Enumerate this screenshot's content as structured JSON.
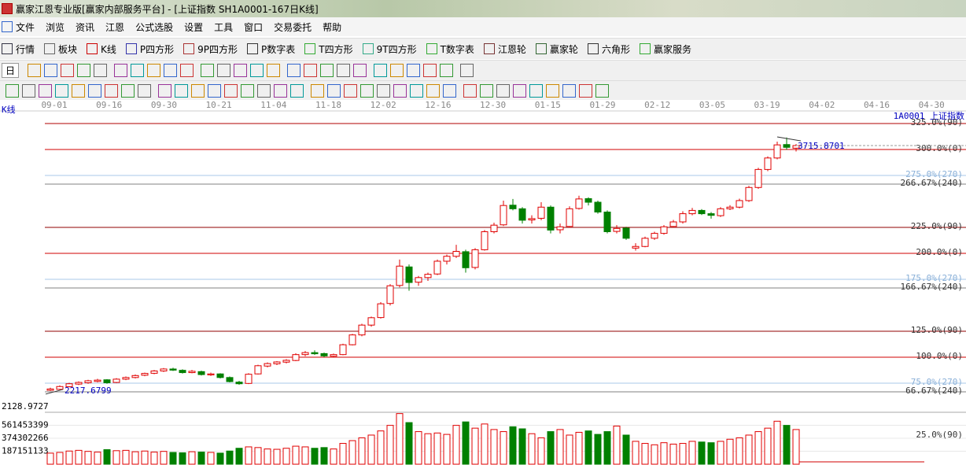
{
  "window": {
    "title": "赢家江恩专业版[赢家内部服务平台] - [上证指数  SH1A0001-167日K线]"
  },
  "menu": [
    "文件",
    "浏览",
    "资讯",
    "江恩",
    "公式选股",
    "设置",
    "工具",
    "窗口",
    "交易委托",
    "帮助"
  ],
  "toolbar": [
    "行情",
    "板块",
    "K线",
    "P四方形",
    "9P四方形",
    "P数字表",
    "T四方形",
    "9T四方形",
    "T数字表",
    "江恩轮",
    "赢家轮",
    "六角形",
    "赢家服务"
  ],
  "period_select": "日",
  "chart_data": {
    "type": "candlestick",
    "label": "K线",
    "symbol": "1A0001  上证指数",
    "dates": [
      "09-01",
      "09-16",
      "09-30",
      "10-21",
      "11-04",
      "11-18",
      "12-02",
      "12-16",
      "12-30",
      "01-15",
      "01-29",
      "02-12",
      "03-05",
      "03-19",
      "04-02",
      "04-16",
      "04-30"
    ],
    "open": [
      2222,
      2228,
      2244,
      2260,
      2268,
      2276,
      2286,
      2270,
      2290,
      2300,
      2314,
      2326,
      2340,
      2352,
      2344,
      2330,
      2336,
      2316,
      2322,
      2300,
      2272,
      2264,
      2322,
      2370,
      2384,
      2394,
      2404,
      2440,
      2452,
      2446,
      2430,
      2440,
      2500,
      2560,
      2620,
      2666,
      2752,
      2862,
      2975,
      2882,
      2910,
      2932,
      3010,
      3040,
      3068,
      2972,
      3080,
      3190,
      3232,
      3352,
      3330,
      3262,
      3272,
      3340,
      3202,
      3222,
      3332,
      3392,
      3370,
      3310,
      3192,
      3212,
      3090,
      3100,
      3150,
      3180,
      3222,
      3250,
      3300,
      3320,
      3300,
      3288,
      3330,
      3340,
      3380,
      3460,
      3570,
      3640,
      3722,
      3700
    ],
    "high": [
      2238,
      2252,
      2268,
      2276,
      2286,
      2292,
      2290,
      2296,
      2306,
      2318,
      2330,
      2346,
      2358,
      2360,
      2350,
      2346,
      2342,
      2330,
      2326,
      2306,
      2280,
      2326,
      2378,
      2392,
      2400,
      2412,
      2448,
      2462,
      2466,
      2452,
      2446,
      2506,
      2566,
      2628,
      2672,
      2760,
      2870,
      3020,
      2990,
      2920,
      2940,
      3020,
      3050,
      3110,
      3080,
      3090,
      3200,
      3245,
      3380,
      3390,
      3340,
      3290,
      3370,
      3350,
      3240,
      3345,
      3410,
      3400,
      3380,
      3320,
      3230,
      3220,
      3120,
      3160,
      3190,
      3230,
      3262,
      3315,
      3335,
      3328,
      3310,
      3340,
      3352,
      3392,
      3470,
      3580,
      3650,
      3740,
      3765,
      3725
    ],
    "low": [
      2217.6799,
      2224,
      2240,
      2254,
      2262,
      2270,
      2262,
      2266,
      2284,
      2294,
      2308,
      2320,
      2334,
      2340,
      2324,
      2326,
      2312,
      2310,
      2294,
      2270,
      2256,
      2260,
      2318,
      2362,
      2376,
      2386,
      2400,
      2430,
      2438,
      2424,
      2424,
      2436,
      2496,
      2552,
      2610,
      2660,
      2740,
      2850,
      2830,
      2860,
      2890,
      2925,
      2990,
      3030,
      2940,
      2960,
      3075,
      3180,
      3225,
      3320,
      3240,
      3240,
      3260,
      3180,
      3180,
      3215,
      3325,
      3350,
      3300,
      3180,
      3180,
      3140,
      3075,
      3095,
      3140,
      3172,
      3215,
      3240,
      3290,
      3292,
      3270,
      3280,
      3322,
      3332,
      3372,
      3452,
      3560,
      3632,
      3690,
      3680
    ],
    "close": [
      2230,
      2245,
      2262,
      2270,
      2280,
      2284,
      2268,
      2290,
      2300,
      2312,
      2325,
      2340,
      2352,
      2345,
      2330,
      2338,
      2318,
      2322,
      2300,
      2275,
      2262,
      2320,
      2372,
      2385,
      2395,
      2405,
      2440,
      2452,
      2445,
      2432,
      2440,
      2500,
      2560,
      2620,
      2665,
      2750,
      2860,
      2980,
      2880,
      2910,
      2930,
      3010,
      3040,
      3070,
      2970,
      3080,
      3190,
      3230,
      3350,
      3330,
      3260,
      3270,
      3340,
      3200,
      3220,
      3330,
      3390,
      3370,
      3310,
      3190,
      3210,
      3150,
      3100,
      3150,
      3180,
      3220,
      3250,
      3300,
      3320,
      3300,
      3290,
      3330,
      3340,
      3380,
      3460,
      3570,
      3640,
      3720,
      3705,
      3715.8701
    ],
    "ylim": [
      2155,
      3884
    ],
    "up_color": "#e00000",
    "down_color": "#008000",
    "y2lim": [
      57.58,
      330.3
    ],
    "levels": [
      {
        "value": 325,
        "label": "325.0%(90)",
        "color": "#b00000"
      },
      {
        "value": 300,
        "label": "300.0%(0)",
        "color": "#d00000"
      },
      {
        "value": 275,
        "label": "275.0%(270)",
        "color": "#a8c8e8"
      },
      {
        "value": 266.67,
        "label": "266.67%(240)",
        "color": "#808080"
      },
      {
        "value": 225,
        "label": "225.0%(90)",
        "color": "#900000"
      },
      {
        "value": 200,
        "label": "200.0%(0)",
        "color": "#d00000"
      },
      {
        "value": 175,
        "label": "175.0%(270)",
        "color": "#a8c8e8"
      },
      {
        "value": 166.67,
        "label": "166.67%(240)",
        "color": "#808080"
      },
      {
        "value": 125,
        "label": "125.0%(90)",
        "color": "#900000"
      },
      {
        "value": 100,
        "label": "100.0%(0)",
        "color": "#d00000"
      },
      {
        "value": 75,
        "label": "75.0%(270)",
        "color": "#a8c8e8"
      },
      {
        "value": 66.67,
        "label": "66.67%(240)",
        "color": "#808080"
      }
    ],
    "volume": [
      160000000,
      170000000,
      190000000,
      200000000,
      185000000,
      175000000,
      210000000,
      195000000,
      200000000,
      180000000,
      190000000,
      175000000,
      185000000,
      170000000,
      165000000,
      180000000,
      175000000,
      170000000,
      160000000,
      190000000,
      230000000,
      250000000,
      240000000,
      220000000,
      215000000,
      230000000,
      260000000,
      250000000,
      230000000,
      240000000,
      220000000,
      300000000,
      340000000,
      380000000,
      420000000,
      480000000,
      560000000,
      730000000,
      600000000,
      470000000,
      440000000,
      450000000,
      430000000,
      560000000,
      610000000,
      520000000,
      580000000,
      500000000,
      470000000,
      540000000,
      510000000,
      440000000,
      380000000,
      470000000,
      500000000,
      420000000,
      460000000,
      480000000,
      430000000,
      470000000,
      550000000,
      420000000,
      330000000,
      300000000,
      280000000,
      310000000,
      290000000,
      300000000,
      330000000,
      320000000,
      310000000,
      330000000,
      360000000,
      380000000,
      420000000,
      470000000,
      520000000,
      620000000,
      560000000,
      500000000
    ],
    "volume_ylim": [
      0,
      748604532
    ],
    "volume_yticks": [
      187151133,
      374302266,
      561453399
    ],
    "volume_top_label": "2128.9727",
    "volume_level_label": "25.0%(90)"
  }
}
